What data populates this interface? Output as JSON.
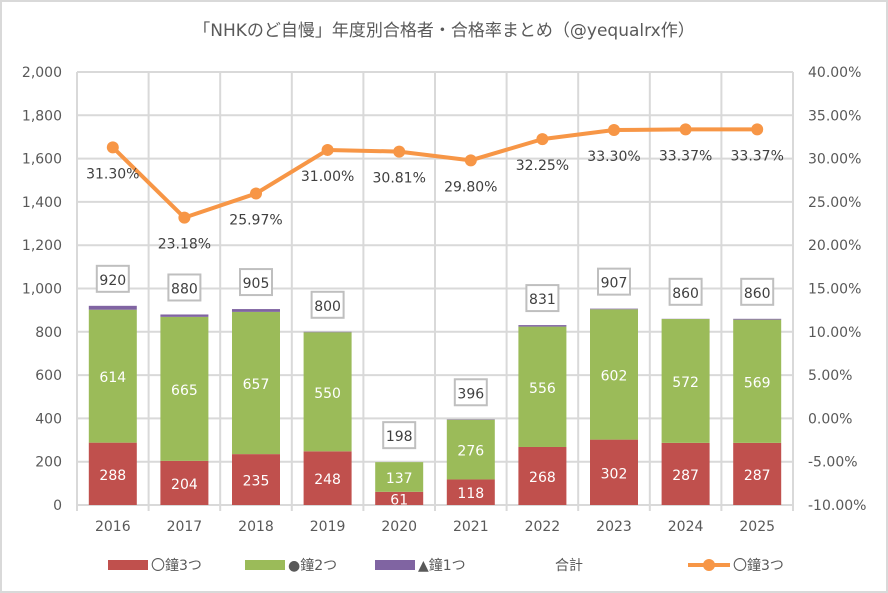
{
  "chart_data": {
    "type": "bar",
    "subtype": "stacked-bar-with-line-secondary-axis",
    "title": "「NHKのど自慢」年度別合格者・合格率まとめ（@yequalrx作）",
    "categories": [
      "2016",
      "2017",
      "2018",
      "2019",
      "2020",
      "2021",
      "2022",
      "2023",
      "2024",
      "2025"
    ],
    "series": [
      {
        "name": "〇鐘3つ",
        "type": "bar",
        "axis": "left",
        "color": "#c0504d",
        "values": [
          288,
          204,
          235,
          248,
          61,
          118,
          268,
          302,
          287,
          287
        ],
        "labels_shown": true
      },
      {
        "name": "●鐘2つ",
        "type": "bar",
        "axis": "left",
        "color": "#9bbb59",
        "values": [
          614,
          665,
          657,
          550,
          137,
          276,
          556,
          602,
          572,
          569
        ],
        "labels_shown": true
      },
      {
        "name": "▲鐘1つ",
        "type": "bar",
        "axis": "left",
        "color": "#8064a2",
        "values": [
          18,
          11,
          13,
          2,
          0,
          2,
          7,
          3,
          1,
          4
        ],
        "labels_shown": false
      },
      {
        "name": "合計",
        "type": "label-only",
        "axis": "left",
        "values": [
          920,
          880,
          905,
          800,
          198,
          396,
          831,
          907,
          860,
          860
        ]
      },
      {
        "name": "〇鐘3つ",
        "type": "line",
        "axis": "right",
        "color": "#f79646",
        "values": [
          31.3,
          23.18,
          25.97,
          31.0,
          30.81,
          29.8,
          32.25,
          33.3,
          33.37,
          33.37
        ],
        "labels": [
          "31.30%",
          "23.18%",
          "25.97%",
          "31.00%",
          "30.81%",
          "29.80%",
          "32.25%",
          "33.30%",
          "33.37%",
          "33.37%"
        ]
      }
    ],
    "y_left": {
      "ylim": [
        0,
        2000
      ],
      "ticks": [
        0,
        200,
        400,
        600,
        800,
        1000,
        1200,
        1400,
        1600,
        1800,
        2000
      ],
      "tick_labels": [
        "0",
        "200",
        "400",
        "600",
        "800",
        "1,000",
        "1,200",
        "1,400",
        "1,600",
        "1,800",
        "2,000"
      ]
    },
    "y_right": {
      "ylim": [
        -10,
        40
      ],
      "ticks": [
        -10,
        -5,
        0,
        5,
        10,
        15,
        20,
        25,
        30,
        35,
        40
      ],
      "tick_labels": [
        "-10.00%",
        "-5.00%",
        "0.00%",
        "5.00%",
        "10.00%",
        "15.00%",
        "20.00%",
        "25.00%",
        "30.00%",
        "35.00%",
        "40.00%"
      ]
    },
    "xlabel": "",
    "ylabel": "",
    "grid": true,
    "legend": {
      "position": "bottom",
      "entries": [
        {
          "label": "〇鐘3つ",
          "kind": "bar",
          "color": "#c0504d"
        },
        {
          "label": "●鐘2つ",
          "kind": "bar",
          "color": "#9bbb59"
        },
        {
          "label": "▲鐘1つ",
          "kind": "bar",
          "color": "#8064a2"
        },
        {
          "label": "合計",
          "kind": "none",
          "color": ""
        },
        {
          "label": "〇鐘3つ",
          "kind": "line",
          "color": "#f79646"
        }
      ]
    },
    "colors": {
      "grid": "#d9d9d9",
      "text": "#595959",
      "label_box_border": "#bfbfbf"
    }
  }
}
